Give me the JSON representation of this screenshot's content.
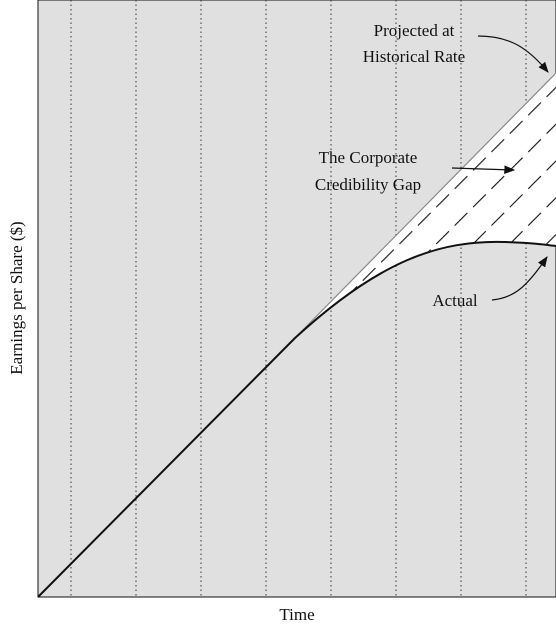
{
  "x_label": "Time",
  "y_label": "Earnings per Share ($)",
  "annotations": {
    "projected": [
      "Projected at",
      "Historical Rate"
    ],
    "gap": [
      "The Corporate",
      "Credibility Gap"
    ],
    "actual": "Actual"
  }
}
